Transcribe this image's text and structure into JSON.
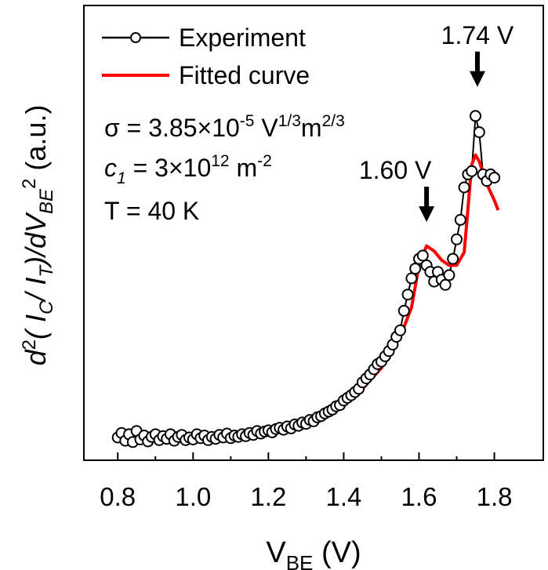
{
  "chart_data": {
    "type": "scatter",
    "title": "",
    "xlabel": {
      "main": "V",
      "sub": "BE",
      "unit": " (V)"
    },
    "ylabel": {
      "parts": [
        "d",
        "2",
        "( I",
        "C",
        "/ I",
        "T",
        ")/dV",
        "BE",
        "2",
        " (a.u.)"
      ]
    },
    "xlim": [
      0.71,
      1.93
    ],
    "ylim": [
      0,
      1
    ],
    "yticks_shown": false,
    "x_ticks": [
      0.8,
      1.0,
      1.2,
      1.4,
      1.6,
      1.8
    ],
    "x_tick_labels": [
      "0.8",
      "1.0",
      "1.2",
      "1.4",
      "1.6",
      "1.8"
    ],
    "legend": {
      "position": "top-left",
      "entries": [
        {
          "label": "Experiment",
          "marker": "open-circle-line",
          "color": "#000000"
        },
        {
          "label": "Fitted curve",
          "marker": "line",
          "color": "#ff0000"
        }
      ]
    },
    "annotations_text": {
      "sigma": {
        "pre": "σ = 3.85×10",
        "exp1": "-5",
        "mid": " V",
        "exp2": "1/3",
        "mid2": "m",
        "exp3": "2/3"
      },
      "c1": {
        "pre": "c",
        "sub": "1",
        "mid": " = 3×10",
        "exp1": "12",
        "mid2": " m",
        "exp2": "-2"
      },
      "temp": "T = 40 K"
    },
    "peak_annotations": [
      {
        "label": "1.60 V",
        "x": 1.62,
        "y": 0.345
      },
      {
        "label": "1.74 V",
        "x": 1.755,
        "y": 0.553
      }
    ],
    "series": [
      {
        "name": "Experiment",
        "color": "#000000",
        "x": [
          0.8,
          0.81,
          0.82,
          0.83,
          0.84,
          0.85,
          0.86,
          0.87,
          0.88,
          0.89,
          0.9,
          0.91,
          0.92,
          0.93,
          0.94,
          0.95,
          0.96,
          0.97,
          0.98,
          0.99,
          1.0,
          1.01,
          1.02,
          1.03,
          1.04,
          1.05,
          1.06,
          1.07,
          1.08,
          1.09,
          1.1,
          1.11,
          1.12,
          1.13,
          1.14,
          1.15,
          1.16,
          1.17,
          1.18,
          1.19,
          1.2,
          1.21,
          1.22,
          1.23,
          1.24,
          1.25,
          1.26,
          1.27,
          1.28,
          1.29,
          1.3,
          1.31,
          1.32,
          1.33,
          1.34,
          1.35,
          1.36,
          1.37,
          1.38,
          1.39,
          1.4,
          1.41,
          1.42,
          1.43,
          1.44,
          1.45,
          1.46,
          1.47,
          1.48,
          1.49,
          1.5,
          1.51,
          1.52,
          1.53,
          1.54,
          1.55,
          1.56,
          1.57,
          1.58,
          1.59,
          1.6,
          1.61,
          1.62,
          1.63,
          1.64,
          1.65,
          1.66,
          1.67,
          1.68,
          1.69,
          1.7,
          1.71,
          1.72,
          1.73,
          1.74,
          1.75,
          1.76,
          1.77,
          1.78,
          1.79,
          1.8
        ],
        "y": [
          0.035,
          0.042,
          0.03,
          0.04,
          0.028,
          0.045,
          0.032,
          0.038,
          0.029,
          0.036,
          0.04,
          0.031,
          0.037,
          0.033,
          0.04,
          0.03,
          0.036,
          0.039,
          0.031,
          0.035,
          0.032,
          0.04,
          0.034,
          0.038,
          0.031,
          0.036,
          0.033,
          0.039,
          0.035,
          0.041,
          0.034,
          0.038,
          0.036,
          0.04,
          0.037,
          0.042,
          0.039,
          0.045,
          0.041,
          0.044,
          0.046,
          0.043,
          0.048,
          0.05,
          0.047,
          0.052,
          0.049,
          0.055,
          0.053,
          0.058,
          0.056,
          0.062,
          0.06,
          0.066,
          0.068,
          0.072,
          0.075,
          0.078,
          0.083,
          0.085,
          0.092,
          0.096,
          0.1,
          0.105,
          0.11,
          0.12,
          0.126,
          0.132,
          0.14,
          0.148,
          0.152,
          0.16,
          0.168,
          0.178,
          0.19,
          0.2,
          0.23,
          0.255,
          0.28,
          0.295,
          0.31,
          0.315,
          0.3,
          0.29,
          0.275,
          0.29,
          0.278,
          0.27,
          0.285,
          0.31,
          0.34,
          0.37,
          0.42,
          0.44,
          0.445,
          0.53,
          0.505,
          0.44,
          0.43,
          0.44,
          0.435
        ]
      },
      {
        "name": "Fitted curve",
        "color": "#ff0000",
        "x": [
          0.8,
          0.85,
          0.9,
          0.95,
          1.0,
          1.05,
          1.1,
          1.15,
          1.2,
          1.25,
          1.3,
          1.35,
          1.4,
          1.45,
          1.5,
          1.55,
          1.58,
          1.6,
          1.62,
          1.64,
          1.66,
          1.68,
          1.7,
          1.72,
          1.74,
          1.75,
          1.76,
          1.78,
          1.8,
          1.81
        ],
        "y": [
          0.035,
          0.036,
          0.036,
          0.036,
          0.037,
          0.038,
          0.039,
          0.042,
          0.046,
          0.052,
          0.06,
          0.072,
          0.088,
          0.11,
          0.142,
          0.19,
          0.235,
          0.3,
          0.33,
          0.322,
          0.308,
          0.3,
          0.3,
          0.32,
          0.455,
          0.47,
          0.46,
          0.425,
          0.4,
          0.385
        ]
      }
    ]
  }
}
